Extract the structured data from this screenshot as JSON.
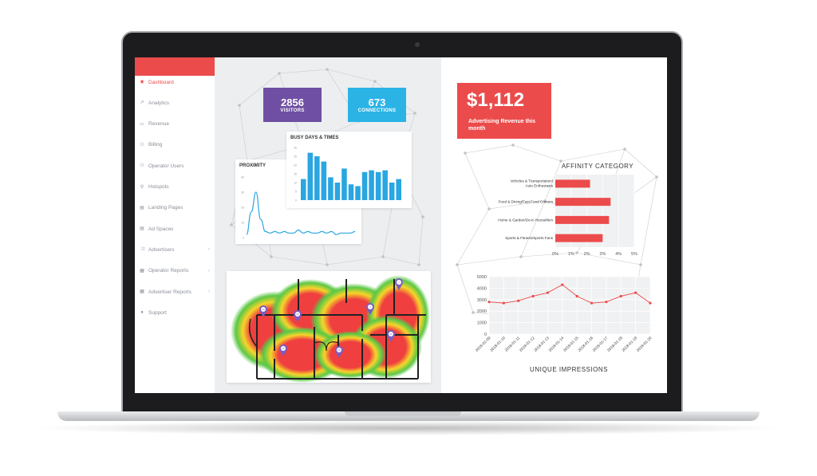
{
  "sidebar": {
    "items": [
      {
        "label": "Dashboard",
        "icon": "dashboard-icon",
        "active": true
      },
      {
        "label": "Analytics",
        "icon": "analytics-icon"
      },
      {
        "label": "Revenue",
        "icon": "revenue-icon"
      },
      {
        "label": "Billing",
        "icon": "billing-icon"
      },
      {
        "label": "Operator Users",
        "icon": "users-icon"
      },
      {
        "label": "Hotspots",
        "icon": "location-pin-icon"
      },
      {
        "label": "Landing Pages",
        "icon": "page-icon"
      },
      {
        "label": "Ad Spaces",
        "icon": "page-icon"
      },
      {
        "label": "Advertisers",
        "icon": "shuffle-icon",
        "chevron": "‹"
      },
      {
        "label": "Operator Reports",
        "icon": "report-icon",
        "chevron": "‹"
      },
      {
        "label": "Advertiser Reports",
        "icon": "report-icon",
        "chevron": "‹"
      },
      {
        "label": "Support",
        "icon": "support-icon"
      }
    ]
  },
  "stats": {
    "visitors": {
      "value": "2856",
      "label": "VISITORS",
      "color": "#6f4fa3"
    },
    "connections": {
      "value": "673",
      "label": "CONNECTIONS",
      "color": "#2bb3e6"
    }
  },
  "revenue": {
    "amount": "$1,112",
    "label": "Advertising Revenue this month",
    "color": "#ec4b4b"
  },
  "chart_data": [
    {
      "type": "bar",
      "title": "BUSY DAYS & TIMES",
      "values": [
        12,
        27,
        25,
        22,
        13,
        10,
        18,
        9,
        8,
        16,
        17,
        16,
        17,
        10,
        12
      ],
      "ylim": [
        0,
        30
      ],
      "yticks": [
        "30",
        "25",
        "20",
        "15",
        "10",
        "5",
        "0"
      ],
      "color": "#2aa6e0"
    },
    {
      "type": "line",
      "title": "PROXIMITY",
      "values": [
        2,
        17,
        30,
        12,
        4,
        3,
        4,
        3,
        4,
        3,
        3,
        5,
        3,
        4,
        3,
        3,
        4,
        3,
        4,
        2,
        3,
        3,
        3,
        4
      ],
      "ylim": [
        0,
        40
      ],
      "yticks": [
        "40",
        "30",
        "20",
        "10",
        "0"
      ],
      "color": "#2aa6e0"
    },
    {
      "type": "bar",
      "title": "AFFINITY CATEGORY",
      "orientation": "horizontal",
      "categories": [
        "Vehicles & Transportation/ Auto Enthusiasts",
        "Food & Dining/Fast Food Cravers",
        "Home & Garden/Do-It-Yourselfers",
        "Sports & Fitness/Sports Fans"
      ],
      "values": [
        2.2,
        3.5,
        3.4,
        3.0
      ],
      "xlim": [
        0,
        5
      ],
      "xticks": [
        "0%",
        "1%",
        "2%",
        "3%",
        "4%",
        "5%"
      ],
      "color": "#ec4b4b"
    },
    {
      "type": "line",
      "title": "UNIQUE IMPRESSIONS",
      "categories": [
        "2018-01-09",
        "2018-01-10",
        "2018-01-11",
        "2018-01-12",
        "2018-01-13",
        "2018-01-14",
        "2018-01-15",
        "2018-01-16",
        "2018-01-17",
        "2018-01-18",
        "2018-01-19",
        "2018-01-20"
      ],
      "values": [
        2800,
        2700,
        2900,
        3300,
        3600,
        4300,
        3300,
        2700,
        2800,
        3300,
        3600,
        2700
      ],
      "ylim": [
        0,
        5000
      ],
      "yticks": [
        "5000",
        "4000",
        "3000",
        "2000",
        "1000",
        "0"
      ],
      "color": "#ec4b4b"
    }
  ],
  "heatmap": {
    "pins": [
      "23",
      "25",
      "26",
      "28",
      "9",
      "11",
      "7"
    ],
    "pin_color": "#7a5cc4"
  }
}
